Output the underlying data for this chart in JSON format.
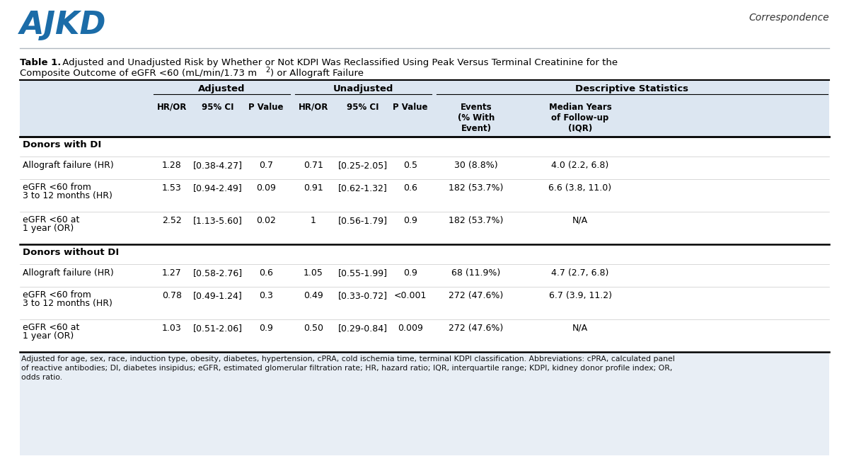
{
  "ajkd_text": "AJKD",
  "correspondence_text": "Correspondence",
  "title_bold": "Table 1.",
  "title_rest": " Adjusted and Unadjusted Risk by Whether or Not KDPI Was Reclassified Using Peak Versus Terminal Creatinine for the",
  "title_line2_main": "Composite Outcome of eGFR <60 (mL/min/1.73 m",
  "title_line2_sup": "2",
  "title_line2_end": ") or Allograft Failure",
  "ajkd_color": "#1b6ca8",
  "bg_color": "#ffffff",
  "header_bg": "#dce6f1",
  "footnote_bg": "#e8eef5",
  "col_headers_line1": [
    "HR/OR",
    "95% CI",
    "P Value",
    "HR/OR",
    "95% CI",
    "P Value",
    "Events\n(% With\nEvent)",
    "Median Years\nof Follow-up\n(IQR)"
  ],
  "group_headers": [
    "Adjusted",
    "Unadjusted",
    "Descriptive Statistics"
  ],
  "section1": "Donors with DI",
  "section2": "Donors without DI",
  "rows": [
    {
      "label": [
        "Allograft failure (HR)"
      ],
      "values": [
        "1.28",
        "[0.38-4.27]",
        "0.7",
        "0.71",
        "[0.25-2.05]",
        "0.5",
        "30 (8.8%)",
        "4.0 (2.2, 6.8)"
      ]
    },
    {
      "label": [
        "eGFR <60 from",
        "3 to 12 months (HR)"
      ],
      "values": [
        "1.53",
        "[0.94-2.49]",
        "0.09",
        "0.91",
        "[0.62-1.32]",
        "0.6",
        "182 (53.7%)",
        "6.6 (3.8, 11.0)"
      ]
    },
    {
      "label": [
        "eGFR <60 at",
        "1 year (OR)"
      ],
      "values": [
        "2.52",
        "[1.13-5.60]",
        "0.02",
        "1",
        "[0.56-1.79]",
        "0.9",
        "182 (53.7%)",
        "N/A"
      ]
    },
    {
      "label": [
        "Allograft failure (HR)"
      ],
      "values": [
        "1.27",
        "[0.58-2.76]",
        "0.6",
        "1.05",
        "[0.55-1.99]",
        "0.9",
        "68 (11.9%)",
        "4.7 (2.7, 6.8)"
      ]
    },
    {
      "label": [
        "eGFR <60 from",
        "3 to 12 months (HR)"
      ],
      "values": [
        "0.78",
        "[0.49-1.24]",
        "0.3",
        "0.49",
        "[0.33-0.72]",
        "<0.001",
        "272 (47.6%)",
        "6.7 (3.9, 11.2)"
      ]
    },
    {
      "label": [
        "eGFR <60 at",
        "1 year (OR)"
      ],
      "values": [
        "1.03",
        "[0.51-2.06]",
        "0.9",
        "0.50",
        "[0.29-0.84]",
        "0.009",
        "272 (47.6%)",
        "N/A"
      ]
    }
  ],
  "footnote": "Adjusted for age, sex, race, induction type, obesity, diabetes, hypertension, cPRA, cold ischemia time, terminal KDPI classification. Abbreviations: cPRA, calculated panel\nof reactive antibodies; DI, diabetes insipidus; eGFR, estimated glomerular filtration rate; HR, hazard ratio; IQR, interquartile range; KDPI, kidney donor profile index; OR,\nodds ratio."
}
